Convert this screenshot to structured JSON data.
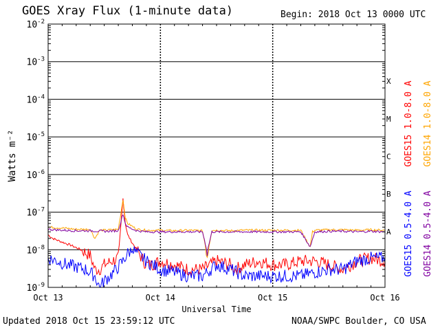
{
  "header": {
    "title": "GOES Xray Flux (1-minute data)",
    "begin": "Begin:  2018 Oct 13 0000 UTC"
  },
  "footer": {
    "updated": "Updated 2018 Oct 15 23:59:12 UTC",
    "credit": "NOAA/SWPC Boulder, CO USA"
  },
  "colors": {
    "goes15_long": "#ff0000",
    "goes14_long": "#ffa500",
    "goes15_short": "#0000ff",
    "goes14_short": "#8000a0",
    "grid": "#000000"
  },
  "chart_data": {
    "type": "line",
    "title": "GOES Xray Flux (1-minute data)",
    "xlabel": "Universal Time",
    "ylabel": "Watts m⁻²",
    "log_scale_y": true,
    "ylim": [
      1e-09,
      0.01
    ],
    "xlim": [
      0,
      72
    ],
    "x_unit": "hours since 2018 Oct 13 0000 UTC",
    "x_ticks": [
      {
        "x": 0,
        "label": "Oct 13"
      },
      {
        "x": 24,
        "label": "Oct 14"
      },
      {
        "x": 48,
        "label": "Oct 15"
      },
      {
        "x": 72,
        "label": "Oct 16"
      }
    ],
    "y_ticks": [
      {
        "exp": -9,
        "label": "10",
        "sup": "-9"
      },
      {
        "exp": -8,
        "label": "10",
        "sup": "-8"
      },
      {
        "exp": -7,
        "label": "10",
        "sup": "-7"
      },
      {
        "exp": -6,
        "label": "10",
        "sup": "-6"
      },
      {
        "exp": -5,
        "label": "10",
        "sup": "-5"
      },
      {
        "exp": -4,
        "label": "10",
        "sup": "-4"
      },
      {
        "exp": -3,
        "label": "10",
        "sup": "-3"
      },
      {
        "exp": -2,
        "label": "10",
        "sup": "-2"
      }
    ],
    "flare_classes": [
      {
        "label": "A",
        "exp": -7.5
      },
      {
        "label": "B",
        "exp": -6.5
      },
      {
        "label": "C",
        "exp": -5.5
      },
      {
        "label": "M",
        "exp": -4.5
      },
      {
        "label": "X",
        "exp": -3.5
      }
    ],
    "grid": true,
    "legend_placement": "right, vertical",
    "series": [
      {
        "name": "GOES15 1.0-8.0 A",
        "color": "#ff0000",
        "x": [
          0,
          1,
          3,
          5,
          7,
          9,
          10,
          11,
          12,
          15,
          16,
          16.5,
          17,
          18,
          19,
          20,
          21,
          22,
          24,
          27,
          30,
          33,
          36,
          39,
          40,
          42,
          45,
          48,
          51,
          54,
          57,
          60,
          63,
          66,
          69,
          72
        ],
        "y": [
          2.5e-08,
          2e-08,
          1.6e-08,
          1.3e-08,
          1e-08,
          7e-09,
          3e-09,
          3e-09,
          4e-09,
          6e-09,
          2.3e-07,
          5e-08,
          2.5e-08,
          1.5e-08,
          1e-08,
          6e-09,
          4e-09,
          4e-09,
          5e-09,
          4e-09,
          3e-09,
          3e-09,
          5e-09,
          4e-09,
          3e-09,
          4e-09,
          5e-09,
          4e-09,
          4e-09,
          5e-09,
          5e-09,
          4e-09,
          3e-09,
          5e-09,
          6e-09,
          5e-09
        ]
      },
      {
        "name": "GOES14 1.0-8.0 A",
        "color": "#ffa500",
        "x": [
          0,
          3,
          6,
          9,
          10,
          11,
          12,
          15,
          16,
          16.5,
          17,
          19,
          21,
          24,
          27,
          30,
          33,
          34,
          35,
          36,
          39,
          42,
          45,
          48,
          54,
          56,
          56.5,
          57,
          60,
          63,
          66,
          69,
          72
        ],
        "y": [
          4e-08,
          3.8e-08,
          3.5e-08,
          3.5e-08,
          2e-08,
          3.3e-08,
          3.3e-08,
          3.5e-08,
          2.2e-07,
          7e-08,
          5e-08,
          3.5e-08,
          3.3e-08,
          3.3e-08,
          3.2e-08,
          3.3e-08,
          3.2e-08,
          7e-09,
          3.3e-08,
          3.3e-08,
          3.2e-08,
          3.3e-08,
          3.3e-08,
          3.3e-08,
          3.3e-08,
          1.2e-08,
          3e-08,
          3.3e-08,
          3.4e-08,
          3.4e-08,
          3.3e-08,
          3.4e-08,
          3.3e-08
        ]
      },
      {
        "name": "GOES15 0.5-4.0 A",
        "color": "#0000ff",
        "x": [
          0,
          2,
          4,
          6,
          8,
          10,
          11,
          12,
          14,
          16,
          17,
          18,
          19,
          21,
          24,
          27,
          30,
          33,
          36,
          39,
          42,
          45,
          48,
          51,
          54,
          57,
          60,
          63,
          66,
          69,
          72
        ],
        "y": [
          6e-09,
          5e-09,
          4e-09,
          3.5e-09,
          3e-09,
          2e-09,
          1e-09,
          1.5e-09,
          2.5e-09,
          5e-09,
          8e-09,
          1e-08,
          8e-09,
          5e-09,
          3e-09,
          2.5e-09,
          2e-09,
          2e-09,
          4e-09,
          3e-09,
          2e-09,
          2e-09,
          2e-09,
          2e-09,
          2e-09,
          2.5e-09,
          3e-09,
          3e-09,
          5e-09,
          6e-09,
          6e-09
        ]
      },
      {
        "name": "GOES14 0.5-4.0 A",
        "color": "#8000a0",
        "x": [
          0,
          3,
          6,
          9,
          12,
          15,
          16,
          16.5,
          17,
          19,
          21,
          24,
          27,
          30,
          33,
          34,
          35,
          36,
          39,
          42,
          45,
          48,
          54,
          56,
          57,
          60,
          63,
          66,
          69,
          72
        ],
        "y": [
          3.5e-08,
          3.3e-08,
          3.2e-08,
          3.2e-08,
          3.1e-08,
          3.2e-08,
          9e-08,
          5e-08,
          4e-08,
          3.2e-08,
          3e-08,
          3e-08,
          3e-08,
          3e-08,
          3e-08,
          9e-09,
          3e-08,
          3e-08,
          3e-08,
          3e-08,
          3e-08,
          3e-08,
          3e-08,
          1.2e-08,
          3e-08,
          3.1e-08,
          3.1e-08,
          3e-08,
          3.1e-08,
          3e-08
        ]
      }
    ]
  }
}
